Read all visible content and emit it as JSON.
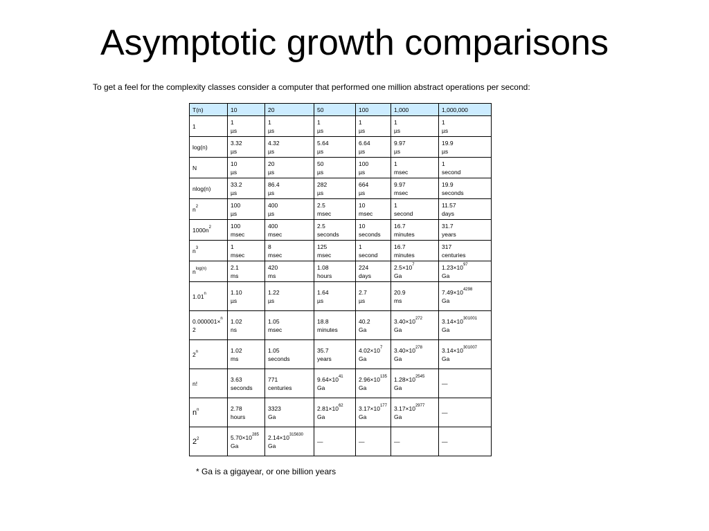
{
  "title": "Asymptotic growth comparisons",
  "intro": "To get a feel for the complexity classes consider a computer that performed one million abstract operations per second:",
  "header": [
    "T(n)",
    "10",
    "20",
    "50",
    "100",
    "1,000",
    "1,000,000"
  ],
  "rows": [
    {
      "label": {
        "base": "1",
        "sup": "",
        "suffix": ""
      },
      "cells": [
        {
          "v": "1",
          "s": "",
          "u": "µs"
        },
        {
          "v": "1",
          "s": "",
          "u": "µs"
        },
        {
          "v": "1",
          "s": "",
          "u": "µs"
        },
        {
          "v": "1",
          "s": "",
          "u": "µs"
        },
        {
          "v": "1",
          "s": "",
          "u": "µs"
        },
        {
          "v": "1",
          "s": "",
          "u": "µs"
        }
      ]
    },
    {
      "label": {
        "base": "log(n)",
        "sup": "",
        "suffix": ""
      },
      "cells": [
        {
          "v": "3.32",
          "s": "",
          "u": "µs"
        },
        {
          "v": "4.32",
          "s": "",
          "u": "µs"
        },
        {
          "v": "5.64",
          "s": "",
          "u": "µs"
        },
        {
          "v": "6.64",
          "s": "",
          "u": "µs"
        },
        {
          "v": "9.97",
          "s": "",
          "u": "µs"
        },
        {
          "v": "19.9",
          "s": "",
          "u": "µs"
        }
      ]
    },
    {
      "label": {
        "base": "N",
        "sup": "",
        "suffix": ""
      },
      "cells": [
        {
          "v": "10",
          "s": "",
          "u": "µs"
        },
        {
          "v": "20",
          "s": "",
          "u": "µs"
        },
        {
          "v": "50",
          "s": "",
          "u": "µs"
        },
        {
          "v": "100",
          "s": "",
          "u": "µs"
        },
        {
          "v": "1",
          "s": "",
          "u": "msec"
        },
        {
          "v": "1",
          "s": "",
          "u": "second"
        }
      ]
    },
    {
      "label": {
        "base": "nlog(n)",
        "sup": "",
        "suffix": ""
      },
      "cells": [
        {
          "v": "33.2",
          "s": "",
          "u": "µs"
        },
        {
          "v": "86.4",
          "s": "",
          "u": "µs"
        },
        {
          "v": "282",
          "s": "",
          "u": "µs"
        },
        {
          "v": "664",
          "s": "",
          "u": "µs"
        },
        {
          "v": "9.97",
          "s": "",
          "u": "msec"
        },
        {
          "v": "19.9",
          "s": "",
          "u": "seconds"
        }
      ]
    },
    {
      "label": {
        "base": "n",
        "sup": "2",
        "suffix": ""
      },
      "cells": [
        {
          "v": "100",
          "s": "",
          "u": "µs"
        },
        {
          "v": "400",
          "s": "",
          "u": "µs"
        },
        {
          "v": "2.5",
          "s": "",
          "u": "msec"
        },
        {
          "v": "10",
          "s": "",
          "u": "msec"
        },
        {
          "v": "1",
          "s": "",
          "u": "second"
        },
        {
          "v": "11.57",
          "s": "",
          "u": "days"
        }
      ]
    },
    {
      "label": {
        "base": "1000n",
        "sup": "2",
        "suffix": ""
      },
      "cells": [
        {
          "v": "100",
          "s": "",
          "u": "msec"
        },
        {
          "v": "400",
          "s": "",
          "u": "msec"
        },
        {
          "v": "2.5",
          "s": "",
          "u": "seconds"
        },
        {
          "v": "10",
          "s": "",
          "u": "seconds"
        },
        {
          "v": "16.7",
          "s": "",
          "u": "minutes"
        },
        {
          "v": "31.7",
          "s": "",
          "u": "years"
        }
      ]
    },
    {
      "label": {
        "base": "n",
        "sup": "3",
        "suffix": ""
      },
      "cells": [
        {
          "v": "1",
          "s": "",
          "u": "msec"
        },
        {
          "v": "8",
          "s": "",
          "u": "msec"
        },
        {
          "v": "125",
          "s": "",
          "u": "msec"
        },
        {
          "v": "1",
          "s": "",
          "u": "second"
        },
        {
          "v": "16.7",
          "s": "",
          "u": "minutes"
        },
        {
          "v": "317",
          "s": "",
          "u": "centuries"
        }
      ]
    },
    {
      "label": {
        "base": "n",
        "sup": "log(n)",
        "suffix": ""
      },
      "cells": [
        {
          "v": "2.1",
          "s": "",
          "u": "ms"
        },
        {
          "v": "420",
          "s": "",
          "u": "ms"
        },
        {
          "v": "1.08",
          "s": "",
          "u": "hours"
        },
        {
          "v": "224",
          "s": "",
          "u": "days"
        },
        {
          "v": "2.5×10",
          "s": "7",
          "u": "Ga"
        },
        {
          "v": "1.23×10",
          "s": "97",
          "u": "Ga"
        }
      ]
    },
    {
      "label": {
        "base": "1.01",
        "sup": "n",
        "suffix": ""
      },
      "cells": [
        {
          "v": "1.10",
          "s": "",
          "u": "µs"
        },
        {
          "v": "1.22",
          "s": "",
          "u": "µs"
        },
        {
          "v": "1.64",
          "s": "",
          "u": "µs"
        },
        {
          "v": "2.7",
          "s": "",
          "u": "µs"
        },
        {
          "v": "20.9",
          "s": "",
          "u": "ms"
        },
        {
          "v": "7.49×10",
          "s": "4298",
          "u": "Ga"
        }
      ]
    },
    {
      "label": {
        "base": "0.000001×",
        "sup": "n",
        "suffix": "2"
      },
      "cells": [
        {
          "v": "1.02",
          "s": "",
          "u": "ns"
        },
        {
          "v": "1.05",
          "s": "",
          "u": "msec"
        },
        {
          "v": "18.8",
          "s": "",
          "u": "minutes"
        },
        {
          "v": "40.2",
          "s": "",
          "u": "Ga"
        },
        {
          "v": "3.40×10",
          "s": "272",
          "u": "Ga"
        },
        {
          "v": "3.14×10",
          "s": "301001",
          "u": "Ga"
        }
      ]
    },
    {
      "label": {
        "base": "2",
        "sup": "n",
        "suffix": ""
      },
      "cells": [
        {
          "v": "1.02",
          "s": "",
          "u": "ms"
        },
        {
          "v": "1.05",
          "s": "",
          "u": "seconds"
        },
        {
          "v": "35.7",
          "s": "",
          "u": "years"
        },
        {
          "v": "4.02×10",
          "s": "7",
          "u": "Ga"
        },
        {
          "v": "3.40×10",
          "s": "278",
          "u": "Ga"
        },
        {
          "v": "3.14×10",
          "s": "301007",
          "u": "Ga"
        }
      ]
    },
    {
      "label": {
        "base": "n!",
        "sup": "",
        "suffix": ""
      },
      "cells": [
        {
          "v": "3.63",
          "s": "",
          "u": "seconds"
        },
        {
          "v": "771",
          "s": "",
          "u": "centuries"
        },
        {
          "v": "9.64×10",
          "s": "41",
          "u": "Ga"
        },
        {
          "v": "2.96×10",
          "s": "135",
          "u": "Ga"
        },
        {
          "v": "1.28×10",
          "s": "2545",
          "u": "Ga"
        },
        {
          "v": "—",
          "s": "",
          "u": ""
        }
      ]
    },
    {
      "label": {
        "base": "n",
        "sup": "n",
        "suffix": ""
      },
      "cells": [
        {
          "v": "2.78",
          "s": "",
          "u": "hours"
        },
        {
          "v": "3323",
          "s": "",
          "u": "Ga"
        },
        {
          "v": "2.81×10",
          "s": "62",
          "u": "Ga"
        },
        {
          "v": "3.17×10",
          "s": "177",
          "u": "Ga"
        },
        {
          "v": "3.17×10",
          "s": "2977",
          "u": "Ga"
        },
        {
          "v": "—",
          "s": "",
          "u": ""
        }
      ]
    },
    {
      "label": {
        "base": "2",
        "sup": "2",
        "sup2": "n",
        "suffix": ""
      },
      "cells": [
        {
          "v": "5.70×10",
          "s": "285",
          "u": "Ga"
        },
        {
          "v": "2.14×10",
          "s": "315630",
          "u": "Ga"
        },
        {
          "v": "—",
          "s": "",
          "u": ""
        },
        {
          "v": "—",
          "s": "",
          "u": ""
        },
        {
          "v": "—",
          "s": "",
          "u": ""
        },
        {
          "v": "—",
          "s": "",
          "u": ""
        }
      ]
    }
  ],
  "footnote": "* Ga is a gigayear, or one billion years",
  "colors": {
    "header_bg": "#ccecff",
    "border": "#000000"
  }
}
